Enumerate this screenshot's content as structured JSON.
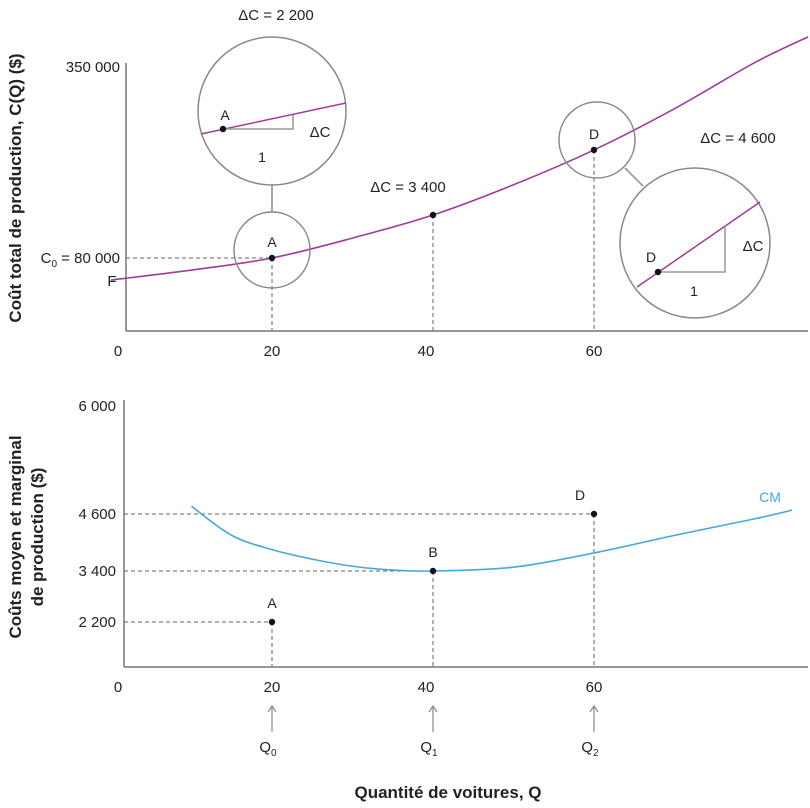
{
  "colors": {
    "total_cost": "#a23a9c",
    "average_cost": "#45a9d9",
    "axis": "#777777"
  },
  "chart_data": [
    {
      "type": "line",
      "title": "",
      "xlabel": "",
      "ylabel": "Coût total de production, C(Q) ($)",
      "xlim": [
        0,
        86
      ],
      "ylim": [
        0,
        350000
      ],
      "x_ticks": [
        "0",
        "20",
        "40",
        "60"
      ],
      "y_ticks": {
        "top": "350 000",
        "fixed_cost": "F"
      },
      "c0_label": {
        "symbol": "C",
        "sub": "0",
        "value": " = 80 000"
      },
      "series": [
        {
          "name": "C(Q)",
          "x": [
            0,
            10,
            20,
            30,
            40,
            50,
            60,
            70,
            80,
            86.6
          ],
          "y": [
            49000,
            63000,
            80000,
            108000,
            140500,
            183000,
            232000,
            290000,
            355000,
            391000
          ]
        }
      ],
      "points": [
        {
          "label": "A",
          "x": 20,
          "y": 80000
        },
        {
          "label": "",
          "x": 40,
          "y": 140500
        },
        {
          "label": "D",
          "x": 60,
          "y": 232000
        }
      ],
      "annotations": {
        "delta_a": "ΔC = 2 200",
        "delta_b": "ΔC = 3 400",
        "delta_d": "ΔC = 4 600",
        "zoom_a": {
          "point": "A",
          "rise": "ΔC",
          "run": "1"
        },
        "zoom_d": {
          "point": "D",
          "rise": "ΔC",
          "run": "1"
        }
      }
    },
    {
      "type": "line",
      "title": "",
      "xlabel": "Quantité de voitures, Q",
      "ylabel": [
        "Coûts moyen et marginal",
        "de production ($)"
      ],
      "xlim": [
        0,
        86
      ],
      "x_ticks": [
        "0",
        "20",
        "40",
        "60"
      ],
      "y_ticks": [
        "6 000",
        "4 600",
        "3 400",
        "2 200"
      ],
      "y_tick_values": [
        6000,
        4600,
        3400,
        2200
      ],
      "series": [
        {
          "name": "CM",
          "x": [
            10,
            15,
            20,
            25,
            30,
            35,
            40,
            50,
            60,
            70,
            80,
            84.6
          ],
          "y": [
            4700,
            4150,
            3850,
            3650,
            3500,
            3420,
            3400,
            3480,
            3780,
            4150,
            4500,
            4650
          ]
        }
      ],
      "points": [
        {
          "label": "A",
          "x": 20,
          "y": 2200
        },
        {
          "label": "B",
          "x": 40,
          "y": 3400
        },
        {
          "label": "D",
          "x": 60,
          "y": 4600
        }
      ],
      "quantity_markers": [
        {
          "symbol": "Q",
          "sub": "0",
          "x": 20
        },
        {
          "symbol": "Q",
          "sub": "1",
          "x": 40
        },
        {
          "symbol": "Q",
          "sub": "2",
          "x": 60
        }
      ]
    }
  ]
}
